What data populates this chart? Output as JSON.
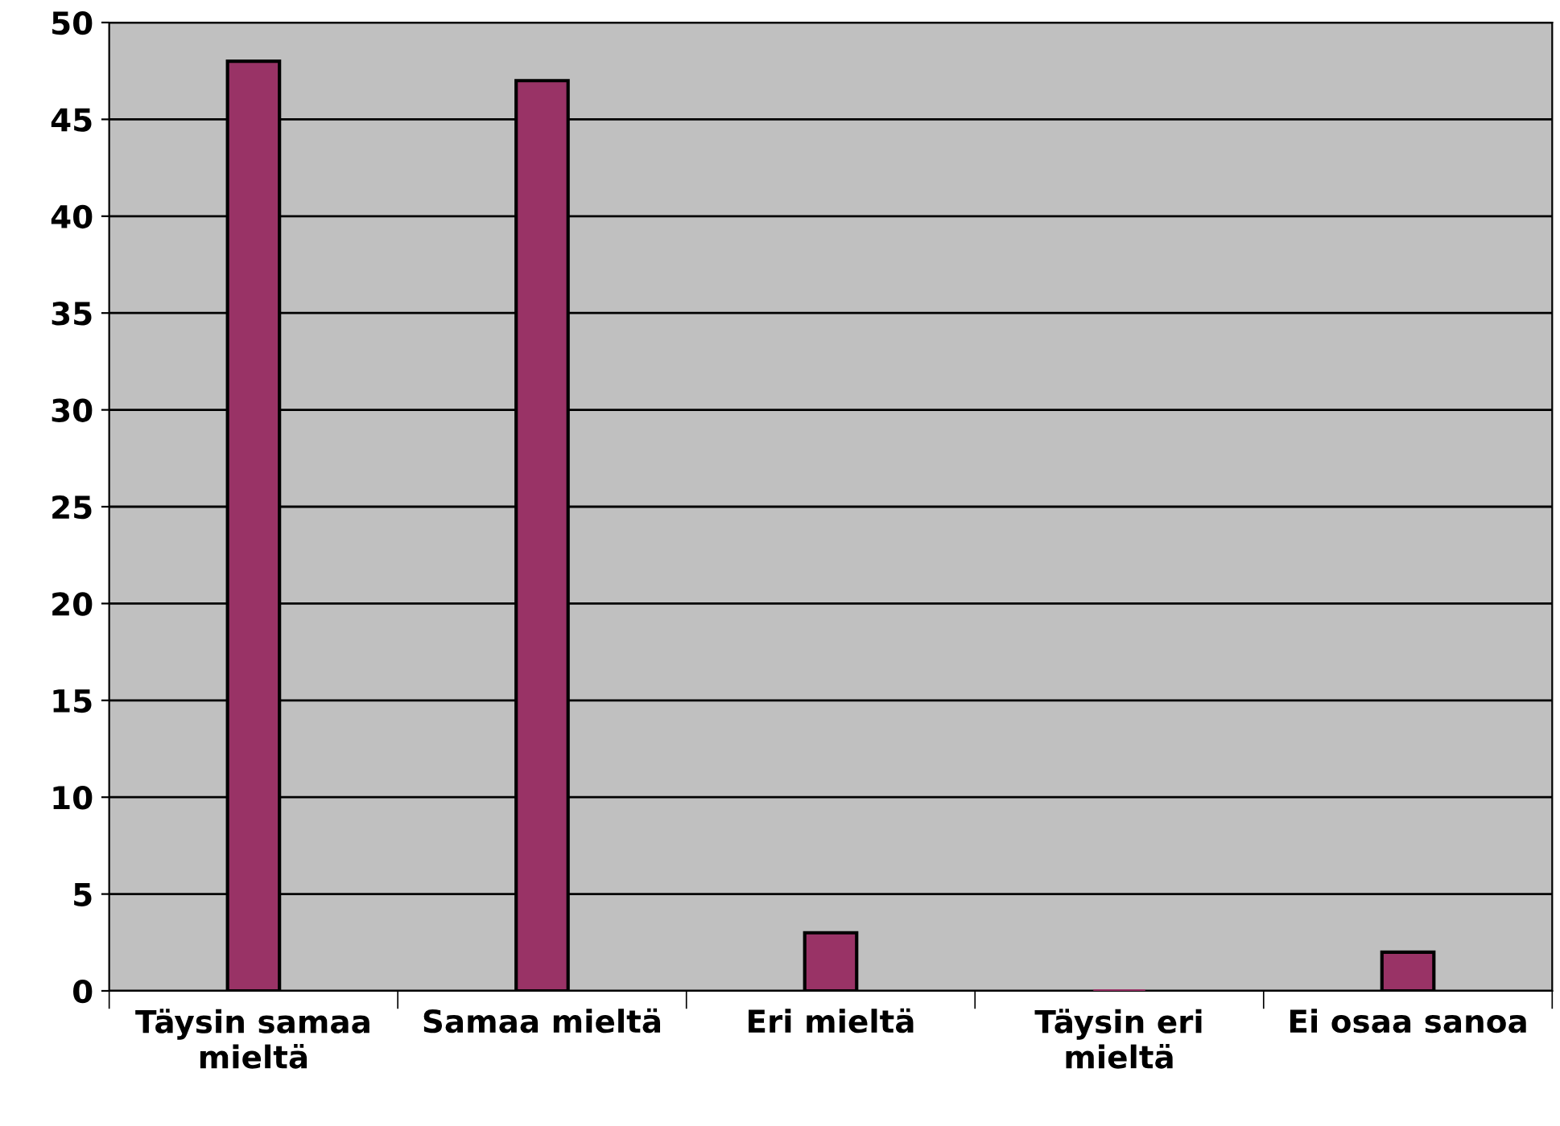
{
  "chart_data": {
    "type": "bar",
    "categories": [
      "Täysin samaa mieltä",
      "Samaa mieltä",
      "Eri mieltä",
      "Täysin eri mieltä",
      "Ei osaa sanoa"
    ],
    "values": [
      48,
      47,
      3,
      0,
      2
    ],
    "color": "#993366",
    "ylim": [
      0,
      50
    ],
    "yticks": [
      0,
      5,
      10,
      15,
      20,
      25,
      30,
      35,
      40,
      45,
      50
    ],
    "grid": "y"
  }
}
